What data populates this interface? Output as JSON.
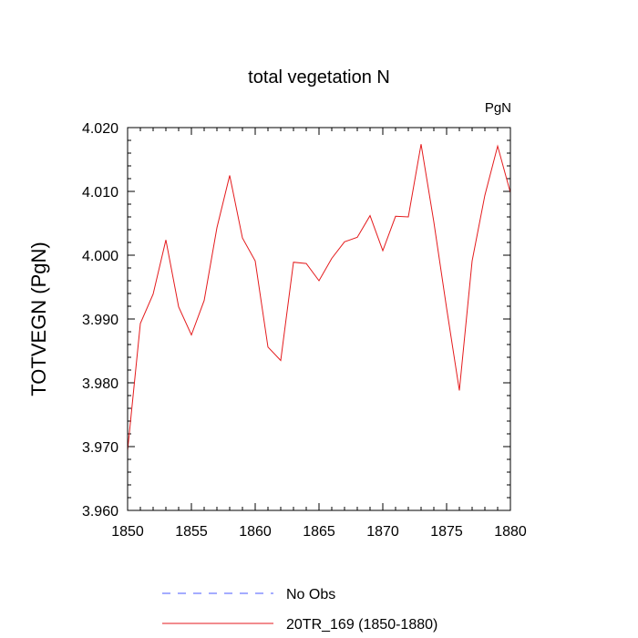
{
  "chart_data": {
    "type": "line",
    "title": "total vegetation N",
    "units_label": "PgN",
    "xlabel": "",
    "ylabel": "TOTVEGN  (PgN)",
    "xlim": [
      1850,
      1880
    ],
    "ylim": [
      3.96,
      4.02
    ],
    "x_ticks": [
      1850,
      1855,
      1860,
      1865,
      1870,
      1875,
      1880
    ],
    "x_tick_labels": [
      "1850",
      "1855",
      "1860",
      "1865",
      "1870",
      "1875",
      "1880"
    ],
    "y_ticks": [
      3.96,
      3.97,
      3.98,
      3.99,
      4.0,
      4.01,
      4.02
    ],
    "y_tick_labels": [
      "3.960",
      "3.970",
      "3.980",
      "3.990",
      "4.000",
      "4.010",
      "4.020"
    ],
    "grid": false,
    "legend_position": "bottom",
    "series": [
      {
        "name": "20TR_169 (1850-1880)",
        "color": "#e41a1c",
        "style": "solid",
        "x": [
          1850,
          1851,
          1852,
          1853,
          1854,
          1855,
          1856,
          1857,
          1858,
          1859,
          1860,
          1861,
          1862,
          1863,
          1864,
          1865,
          1866,
          1867,
          1868,
          1869,
          1870,
          1871,
          1872,
          1873,
          1874,
          1875,
          1876,
          1877,
          1878,
          1879,
          1880
        ],
        "values": [
          3.9694,
          3.9893,
          3.9939,
          4.0024,
          3.9919,
          3.9875,
          3.9929,
          4.0043,
          4.0125,
          4.0027,
          3.9991,
          3.9856,
          3.9835,
          3.9989,
          3.9987,
          3.996,
          3.9995,
          4.0021,
          4.0028,
          4.0062,
          4.0007,
          4.0061,
          4.006,
          4.0174,
          4.0052,
          3.9917,
          3.9788,
          3.9991,
          4.0094,
          4.0171,
          4.0098
        ]
      }
    ],
    "legend": [
      {
        "label": "No Obs",
        "color": "#4a5aff",
        "style": "dashed"
      },
      {
        "label": "20TR_169 (1850-1880)",
        "color": "#e41a1c",
        "style": "solid"
      }
    ]
  }
}
